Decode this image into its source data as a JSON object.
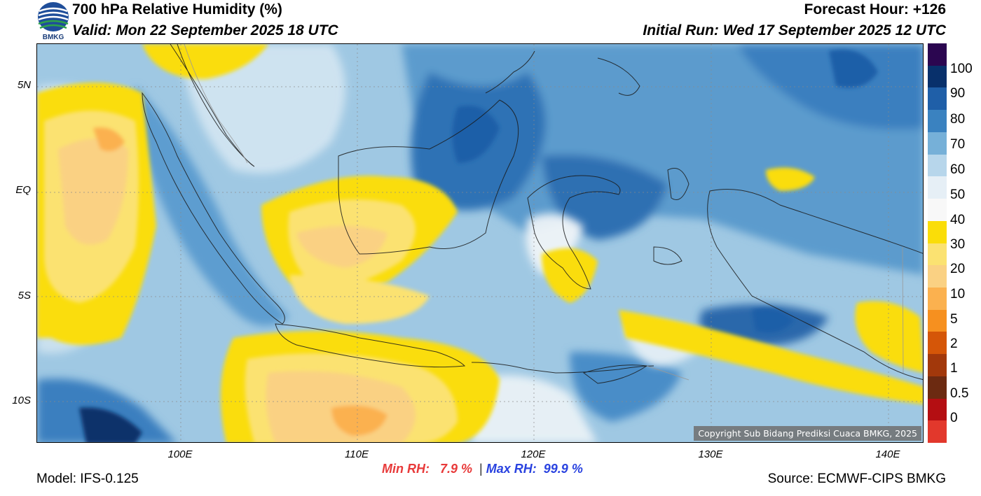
{
  "header": {
    "title": "700 hPa Relative Humidity (%)",
    "valid": "Valid: Mon 22 September 2025 18 UTC",
    "forecast_hour": "Forecast Hour: +126",
    "initial_run": "Initial Run: Wed 17 September 2025 12 UTC",
    "logo_text": "BMKG"
  },
  "axes": {
    "latitude_labels": [
      "5N",
      "EQ",
      "5S",
      "10S"
    ],
    "longitude_labels": [
      "100E",
      "110E",
      "120E",
      "130E",
      "140E"
    ]
  },
  "colorbar": {
    "labels": [
      "100",
      "90",
      "80",
      "70",
      "60",
      "50",
      "40",
      "30",
      "20",
      "10",
      "5",
      "2",
      "1",
      "0.5",
      "0"
    ],
    "colors": [
      "#2b0650",
      "#08306b",
      "#1f5fa8",
      "#3a82c0",
      "#76b0d8",
      "#b7d6eb",
      "#e6eff6",
      "#f8f8f8",
      "#fadd08",
      "#fbe271",
      "#fad183",
      "#fbb14f",
      "#f6901f",
      "#d55608",
      "#a2380b",
      "#6c2a11",
      "#b40e12",
      "#e2382c"
    ]
  },
  "map": {
    "copyright": "Copyright Sub Bidang Prediksi Cuaca BMKG, 2025"
  },
  "stats": {
    "min_label": "Min RH:",
    "min_value": "7.9 %",
    "separator": "|",
    "max_label": "Max RH:",
    "max_value": "99.9 %"
  },
  "footer": {
    "model": "Model: IFS-0.125",
    "source": "Source: ECMWF-CIPS BMKG"
  }
}
